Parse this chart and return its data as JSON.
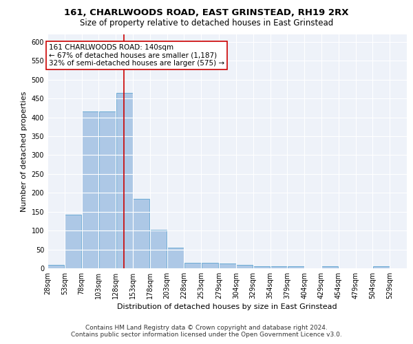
{
  "title1": "161, CHARLWOODS ROAD, EAST GRINSTEAD, RH19 2RX",
  "title2": "Size of property relative to detached houses in East Grinstead",
  "xlabel": "Distribution of detached houses by size in East Grinstead",
  "ylabel": "Number of detached properties",
  "footnote1": "Contains HM Land Registry data © Crown copyright and database right 2024.",
  "footnote2": "Contains public sector information licensed under the Open Government Licence v3.0.",
  "annotation_line1": "161 CHARLWOODS ROAD: 140sqm",
  "annotation_line2": "← 67% of detached houses are smaller (1,187)",
  "annotation_line3": "32% of semi-detached houses are larger (575) →",
  "bar_color": "#adc8e6",
  "bar_edge_color": "#6aaad4",
  "vline_color": "#cc0000",
  "vline_x": 140,
  "bins": [
    28,
    53,
    78,
    103,
    128,
    153,
    178,
    203,
    228,
    253,
    279,
    304,
    329,
    354,
    379,
    404,
    429,
    454,
    479,
    504,
    529,
    554
  ],
  "bin_labels": [
    "28sqm",
    "53sqm",
    "78sqm",
    "103sqm",
    "128sqm",
    "153sqm",
    "178sqm",
    "203sqm",
    "228sqm",
    "253sqm",
    "279sqm",
    "304sqm",
    "329sqm",
    "354sqm",
    "379sqm",
    "404sqm",
    "429sqm",
    "454sqm",
    "479sqm",
    "504sqm",
    "529sqm"
  ],
  "bar_heights": [
    10,
    142,
    415,
    415,
    465,
    185,
    103,
    55,
    15,
    14,
    12,
    10,
    5,
    5,
    5,
    0,
    5,
    0,
    0,
    5,
    0
  ],
  "ylim": [
    0,
    620
  ],
  "yticks": [
    0,
    50,
    100,
    150,
    200,
    250,
    300,
    350,
    400,
    450,
    500,
    550,
    600
  ],
  "background_color": "#eef2f9",
  "grid_color": "#ffffff",
  "title1_fontsize": 9.5,
  "title2_fontsize": 8.5,
  "annotation_fontsize": 7.5,
  "axis_label_fontsize": 8,
  "tick_fontsize": 7,
  "footnote_fontsize": 6.5
}
